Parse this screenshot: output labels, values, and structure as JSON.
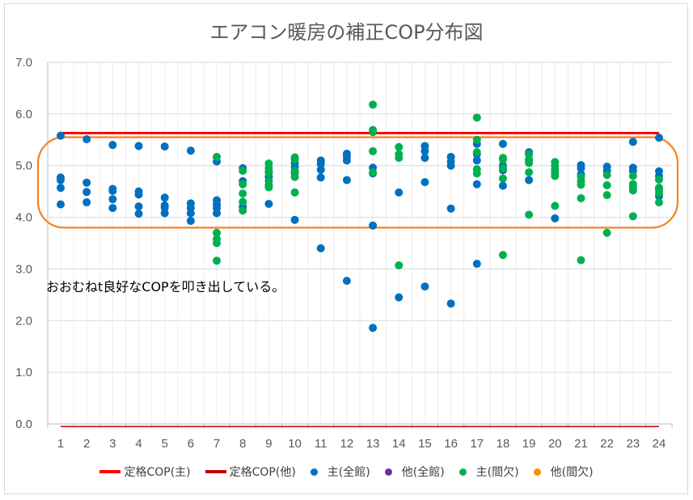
{
  "chart_data": {
    "type": "scatter",
    "title": "エアコン暖房の補正COP分布図",
    "xlabel": "",
    "ylabel": "",
    "x_ticks": [
      "1",
      "2",
      "3",
      "4",
      "5",
      "6",
      "7",
      "8",
      "9",
      "10",
      "11",
      "12",
      "13",
      "14",
      "15",
      "16",
      "17",
      "18",
      "19",
      "20",
      "21",
      "22",
      "23",
      "24"
    ],
    "y_ticks": [
      "0.0",
      "1.0",
      "2.0",
      "3.0",
      "4.0",
      "5.0",
      "6.0",
      "7.0"
    ],
    "xlim": [
      1,
      24
    ],
    "ylim": [
      0,
      7
    ],
    "grid": true,
    "legend_position": "bottom",
    "annotation": "おおむねt良好なCOPを叩き出している。",
    "highlight_range": [
      3.8,
      5.55
    ],
    "colors": {
      "rated_main": "#ff0000",
      "rated_other": "#c00000",
      "main_full": "#0070c0",
      "other_full": "#7030a0",
      "main_intermittent": "#00b050",
      "other_intermittent": "#ff8c00",
      "highlight": "#f58220"
    },
    "series": [
      {
        "name": "定格COP(主)",
        "kind": "line",
        "color": "#ff0000",
        "x": [
          1,
          24
        ],
        "y": [
          5.63,
          5.63
        ]
      },
      {
        "name": "定格COP(他)",
        "kind": "line",
        "color": "#c00000",
        "x": [
          1,
          24
        ],
        "y": [
          -0.05,
          -0.05
        ]
      },
      {
        "name": "主(全館)",
        "kind": "scatter",
        "color": "#0070c0",
        "points": [
          [
            1,
            5.58
          ],
          [
            1,
            4.77
          ],
          [
            1,
            4.72
          ],
          [
            1,
            4.57
          ],
          [
            1,
            4.25
          ],
          [
            2,
            5.51
          ],
          [
            2,
            4.67
          ],
          [
            2,
            4.49
          ],
          [
            2,
            4.29
          ],
          [
            3,
            5.4
          ],
          [
            3,
            4.55
          ],
          [
            3,
            4.51
          ],
          [
            3,
            4.35
          ],
          [
            3,
            4.18
          ],
          [
            4,
            5.38
          ],
          [
            4,
            4.5
          ],
          [
            4,
            4.44
          ],
          [
            4,
            4.21
          ],
          [
            4,
            4.07
          ],
          [
            5,
            5.37
          ],
          [
            5,
            4.38
          ],
          [
            5,
            4.23
          ],
          [
            5,
            4.19
          ],
          [
            5,
            4.08
          ],
          [
            6,
            5.29
          ],
          [
            6,
            4.27
          ],
          [
            6,
            4.18
          ],
          [
            6,
            4.08
          ],
          [
            6,
            3.93
          ],
          [
            7,
            5.08
          ],
          [
            7,
            4.33
          ],
          [
            7,
            4.25
          ],
          [
            7,
            4.18
          ],
          [
            7,
            4.08
          ],
          [
            8,
            4.95
          ],
          [
            8,
            4.7
          ],
          [
            8,
            4.2
          ],
          [
            9,
            4.88
          ],
          [
            9,
            4.78
          ],
          [
            9,
            4.62
          ],
          [
            9,
            4.26
          ],
          [
            10,
            5.05
          ],
          [
            10,
            4.97
          ],
          [
            10,
            4.85
          ],
          [
            10,
            3.95
          ],
          [
            11,
            5.1
          ],
          [
            11,
            5.03
          ],
          [
            11,
            4.92
          ],
          [
            11,
            4.77
          ],
          [
            11,
            3.4
          ],
          [
            12,
            5.23
          ],
          [
            12,
            5.18
          ],
          [
            12,
            5.1
          ],
          [
            12,
            4.72
          ],
          [
            12,
            2.77
          ],
          [
            13,
            4.96
          ],
          [
            13,
            4.85
          ],
          [
            13,
            3.84
          ],
          [
            13,
            1.86
          ],
          [
            14,
            4.48
          ],
          [
            14,
            2.45
          ],
          [
            15,
            5.38
          ],
          [
            15,
            5.28
          ],
          [
            15,
            5.15
          ],
          [
            15,
            4.68
          ],
          [
            15,
            2.66
          ],
          [
            16,
            5.17
          ],
          [
            16,
            5.08
          ],
          [
            16,
            5.0
          ],
          [
            16,
            4.17
          ],
          [
            16,
            2.33
          ],
          [
            17,
            5.42
          ],
          [
            17,
            5.22
          ],
          [
            17,
            5.1
          ],
          [
            17,
            4.64
          ],
          [
            17,
            3.1
          ],
          [
            18,
            5.42
          ],
          [
            18,
            5.0
          ],
          [
            18,
            4.91
          ],
          [
            18,
            4.61
          ],
          [
            19,
            5.26
          ],
          [
            19,
            5.1
          ],
          [
            19,
            4.72
          ],
          [
            20,
            3.98
          ],
          [
            21,
            5.01
          ],
          [
            21,
            4.95
          ],
          [
            21,
            4.83
          ],
          [
            22,
            4.98
          ],
          [
            22,
            4.9
          ],
          [
            23,
            5.46
          ],
          [
            23,
            4.96
          ],
          [
            23,
            4.9
          ],
          [
            23,
            4.58
          ],
          [
            24,
            5.54
          ],
          [
            24,
            4.89
          ],
          [
            24,
            4.8
          ],
          [
            24,
            4.57
          ],
          [
            24,
            4.41
          ]
        ]
      },
      {
        "name": "他(全館)",
        "kind": "scatter",
        "color": "#7030a0",
        "points": []
      },
      {
        "name": "主(間欠)",
        "kind": "scatter",
        "color": "#00b050",
        "points": [
          [
            7,
            5.17
          ],
          [
            7,
            3.7
          ],
          [
            7,
            3.58
          ],
          [
            7,
            3.5
          ],
          [
            7,
            3.16
          ],
          [
            8,
            4.9
          ],
          [
            8,
            4.64
          ],
          [
            8,
            4.46
          ],
          [
            8,
            4.3
          ],
          [
            8,
            4.13
          ],
          [
            9,
            5.04
          ],
          [
            9,
            4.95
          ],
          [
            9,
            4.86
          ],
          [
            9,
            4.7
          ],
          [
            9,
            4.58
          ],
          [
            10,
            5.16
          ],
          [
            10,
            5.12
          ],
          [
            10,
            4.9
          ],
          [
            10,
            4.78
          ],
          [
            10,
            4.48
          ],
          [
            13,
            6.18
          ],
          [
            13,
            5.69
          ],
          [
            13,
            5.65
          ],
          [
            13,
            5.28
          ],
          [
            13,
            4.87
          ],
          [
            14,
            5.36
          ],
          [
            14,
            5.22
          ],
          [
            14,
            5.15
          ],
          [
            14,
            3.07
          ],
          [
            17,
            5.93
          ],
          [
            17,
            5.5
          ],
          [
            17,
            5.26
          ],
          [
            17,
            4.93
          ],
          [
            17,
            4.85
          ],
          [
            18,
            5.15
          ],
          [
            18,
            5.12
          ],
          [
            18,
            4.95
          ],
          [
            18,
            4.75
          ],
          [
            18,
            3.27
          ],
          [
            19,
            5.22
          ],
          [
            19,
            5.12
          ],
          [
            19,
            5.05
          ],
          [
            19,
            4.87
          ],
          [
            19,
            4.05
          ],
          [
            20,
            5.07
          ],
          [
            20,
            5.0
          ],
          [
            20,
            4.92
          ],
          [
            20,
            4.87
          ],
          [
            20,
            4.8
          ],
          [
            20,
            4.22
          ],
          [
            21,
            4.78
          ],
          [
            21,
            4.7
          ],
          [
            21,
            4.63
          ],
          [
            21,
            4.37
          ],
          [
            21,
            3.17
          ],
          [
            22,
            4.82
          ],
          [
            22,
            4.62
          ],
          [
            22,
            4.43
          ],
          [
            22,
            3.7
          ],
          [
            23,
            4.8
          ],
          [
            23,
            4.64
          ],
          [
            23,
            4.58
          ],
          [
            23,
            4.52
          ],
          [
            23,
            4.02
          ],
          [
            24,
            4.73
          ],
          [
            24,
            4.57
          ],
          [
            24,
            4.52
          ],
          [
            24,
            4.46
          ],
          [
            24,
            4.29
          ]
        ]
      },
      {
        "name": "他(間欠)",
        "kind": "scatter",
        "color": "#ff8c00",
        "points": []
      }
    ]
  },
  "legend": [
    {
      "label": "定格COP(主)",
      "type": "line",
      "color": "#ff0000"
    },
    {
      "label": "定格COP(他)",
      "type": "line",
      "color": "#c00000"
    },
    {
      "label": "主(全館)",
      "type": "dot",
      "color": "#0070c0"
    },
    {
      "label": "他(全館)",
      "type": "dot",
      "color": "#7030a0"
    },
    {
      "label": "主(間欠)",
      "type": "dot",
      "color": "#00b050"
    },
    {
      "label": "他(間欠)",
      "type": "dot",
      "color": "#ff8c00"
    }
  ]
}
